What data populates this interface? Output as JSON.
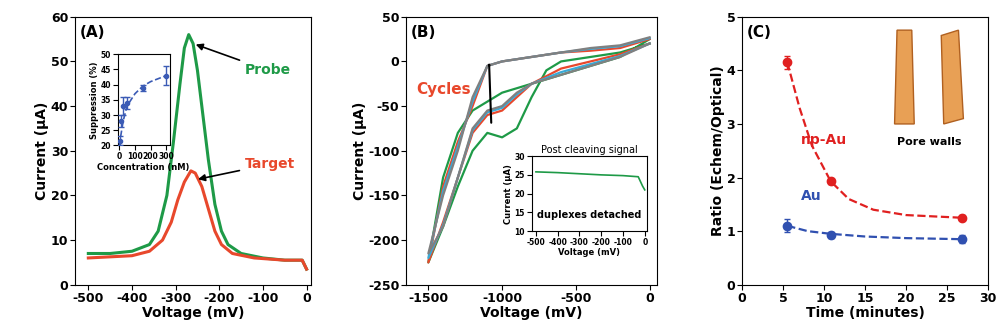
{
  "chart_data": [
    {
      "type": "line",
      "title": "(A)",
      "xlabel": "Voltage (mV)",
      "ylabel": "Current (μA)",
      "xlim": [
        -530,
        10
      ],
      "ylim": [
        0,
        60
      ],
      "xticks": [
        -500,
        -400,
        -300,
        -200,
        -100,
        0
      ],
      "yticks": [
        0,
        10,
        20,
        30,
        40,
        50,
        60
      ],
      "grid": false,
      "series": [
        {
          "name": "Probe",
          "color": "#1e9a47",
          "line_style": "solid",
          "x": [
            -500,
            -450,
            -400,
            -360,
            -340,
            -320,
            -305,
            -290,
            -280,
            -270,
            -260,
            -250,
            -240,
            -225,
            -210,
            -195,
            -180,
            -150,
            -100,
            -50,
            -10,
            0
          ],
          "values": [
            7,
            7,
            7.5,
            9,
            12,
            20,
            32,
            45,
            53,
            56,
            54,
            48,
            40,
            28,
            18,
            12,
            9,
            7,
            6,
            5.5,
            5.5,
            3.5
          ]
        },
        {
          "name": "Target",
          "color": "#e8482c",
          "line_style": "solid",
          "x": [
            -500,
            -400,
            -360,
            -330,
            -310,
            -295,
            -280,
            -265,
            -255,
            -240,
            -225,
            -210,
            -195,
            -170,
            -120,
            -50,
            -10,
            0
          ],
          "values": [
            6,
            6.5,
            7.5,
            10,
            14,
            19,
            23,
            25.5,
            25,
            22,
            17,
            12,
            9,
            7,
            6,
            5.5,
            5.5,
            3.5
          ]
        }
      ],
      "inset": {
        "type": "scatter",
        "xlabel": "Concentration (nM)",
        "ylabel": "Suppression (%)",
        "xlim": [
          -10,
          320
        ],
        "ylim": [
          20,
          50
        ],
        "xticks": [
          0,
          100,
          200,
          300
        ],
        "yticks": [
          20,
          25,
          30,
          35,
          40,
          45,
          50
        ],
        "grid": false,
        "series": [
          {
            "type": "scatter",
            "color": "#3b5bb5",
            "marker": "o",
            "x": [
              5,
              10,
              25,
              50,
              150,
              300
            ],
            "values": [
              21.5,
              28,
              33,
              34,
              39,
              43
            ],
            "errors": [
              1.5,
              2,
              3,
              2,
              1,
              3
            ]
          },
          {
            "type": "line",
            "color": "#3b5bb5",
            "line_style": "dashed",
            "marker": "none",
            "x": [
              0,
              25,
              50,
              100,
              150,
              200,
              300
            ],
            "values": [
              20,
              28,
              33,
              37,
              39.5,
              41,
              43
            ]
          }
        ]
      }
    },
    {
      "type": "line",
      "title": "(B)",
      "xlabel": "Voltage (mV)",
      "ylabel": "Current (μA)",
      "xlim": [
        -1650,
        50
      ],
      "ylim": [
        -250,
        50
      ],
      "xticks": [
        -1500,
        -1000,
        -500,
        0
      ],
      "yticks": [
        -250,
        -200,
        -150,
        -100,
        -50,
        0,
        50
      ],
      "grid": false,
      "annotations": [
        "Cycles"
      ],
      "series": [
        {
          "color": "#1e9a47",
          "line_style": "solid",
          "x": [
            0,
            -200,
            -400,
            -600,
            -700,
            -800,
            -900,
            -1000,
            -1100,
            -1200,
            -1300,
            -1400,
            -1500,
            -1400,
            -1300,
            -1200,
            -1100,
            -1000,
            -800,
            -600,
            -400,
            -200,
            0
          ],
          "values": [
            20,
            10,
            5,
            0,
            -10,
            -40,
            -75,
            -85,
            -80,
            -100,
            -140,
            -185,
            -225,
            -130,
            -80,
            -55,
            -45,
            -35,
            -25,
            -15,
            -5,
            5,
            25
          ]
        },
        {
          "color": "#e8482c",
          "line_style": "solid",
          "x": [
            0,
            -200,
            -400,
            -600,
            -800,
            -900,
            -1000,
            -1100,
            -1200,
            -1300,
            -1400,
            -1500,
            -1400,
            -1300,
            -1200,
            -1100,
            -1000,
            -800,
            -600,
            -400,
            -200,
            0
          ],
          "values": [
            20,
            8,
            0,
            -8,
            -25,
            -40,
            -55,
            -60,
            -80,
            -130,
            -180,
            -225,
            -140,
            -90,
            -50,
            -5,
            0,
            5,
            10,
            12,
            15,
            25
          ]
        },
        {
          "color": "#3aa9d6",
          "line_style": "solid",
          "x": [
            0,
            -200,
            -400,
            -600,
            -800,
            -900,
            -1000,
            -1100,
            -1200,
            -1300,
            -1400,
            -1500,
            -1400,
            -1300,
            -1200,
            -1100,
            -1000,
            -800,
            -600,
            -400,
            -200,
            0
          ],
          "values": [
            20,
            6,
            -3,
            -12,
            -25,
            -37,
            -52,
            -57,
            -77,
            -130,
            -183,
            -220,
            -145,
            -95,
            -45,
            -5,
            0,
            5,
            10,
            14,
            17,
            26
          ]
        },
        {
          "color": "#808080",
          "line_style": "solid",
          "x": [
            0,
            -200,
            -400,
            -600,
            -800,
            -900,
            -1000,
            -1100,
            -1200,
            -1300,
            -1400,
            -1500,
            -1400,
            -1300,
            -1200,
            -1100,
            -1000,
            -800,
            -600,
            -400,
            -200,
            0
          ],
          "values": [
            20,
            5,
            -5,
            -15,
            -25,
            -35,
            -50,
            -55,
            -75,
            -130,
            -185,
            -215,
            -150,
            -100,
            -40,
            -5,
            0,
            5,
            10,
            15,
            18,
            27
          ]
        }
      ],
      "inset": {
        "type": "line",
        "title": "Post cleaving signal",
        "xlabel": "Voltage (mV)",
        "ylabel": "Current (μA)",
        "annotations": [
          "duplexes detached"
        ],
        "xlim": [
          -520,
          10
        ],
        "ylim": [
          10,
          30
        ],
        "xticks": [
          -500,
          -400,
          -300,
          -200,
          -100,
          0
        ],
        "yticks": [
          10,
          15,
          20,
          25,
          30
        ],
        "grid": false,
        "series": [
          {
            "color": "#1e9a47",
            "line_style": "solid",
            "x": [
              -500,
              -400,
              -300,
              -200,
              -100,
              -30,
              -10,
              0
            ],
            "values": [
              25.8,
              25.6,
              25.3,
              25.0,
              24.8,
              24.5,
              22,
              21
            ]
          }
        ]
      }
    },
    {
      "type": "scatter",
      "title": "(C)",
      "xlabel": "Time (minutes)",
      "ylabel": "Ratio (Echem/Optical)",
      "xlim": [
        0,
        30
      ],
      "ylim": [
        0,
        5
      ],
      "xticks": [
        0,
        5,
        10,
        15,
        20,
        25,
        30
      ],
      "yticks": [
        0,
        1,
        2,
        3,
        4,
        5
      ],
      "grid": false,
      "annotations": [
        "Pore walls"
      ],
      "series": [
        {
          "name": "np-Au",
          "type": "scatter",
          "color": "#e02020",
          "marker": "o",
          "x": [
            5.5,
            10.8,
            26.8
          ],
          "values": [
            4.15,
            1.93,
            1.25
          ],
          "errors": [
            0.12,
            0.05,
            0.05
          ]
        },
        {
          "type": "line",
          "color": "#e02020",
          "line_style": "dashed",
          "marker": "none",
          "x": [
            5.5,
            7,
            8.5,
            10.8,
            13,
            16,
            20,
            26.8
          ],
          "values": [
            4.15,
            3.3,
            2.6,
            1.93,
            1.6,
            1.4,
            1.3,
            1.25
          ]
        },
        {
          "name": "Au",
          "type": "scatter",
          "color": "#3050b0",
          "marker": "o",
          "x": [
            5.5,
            10.8,
            26.8
          ],
          "values": [
            1.1,
            0.93,
            0.85
          ],
          "errors": [
            0.12,
            0.05,
            0.08
          ]
        },
        {
          "type": "line",
          "color": "#3050b0",
          "line_style": "dashed",
          "marker": "none",
          "x": [
            5.5,
            8,
            10.8,
            15,
            20,
            26.8
          ],
          "values": [
            1.1,
            1.0,
            0.95,
            0.9,
            0.87,
            0.85
          ]
        }
      ]
    }
  ]
}
